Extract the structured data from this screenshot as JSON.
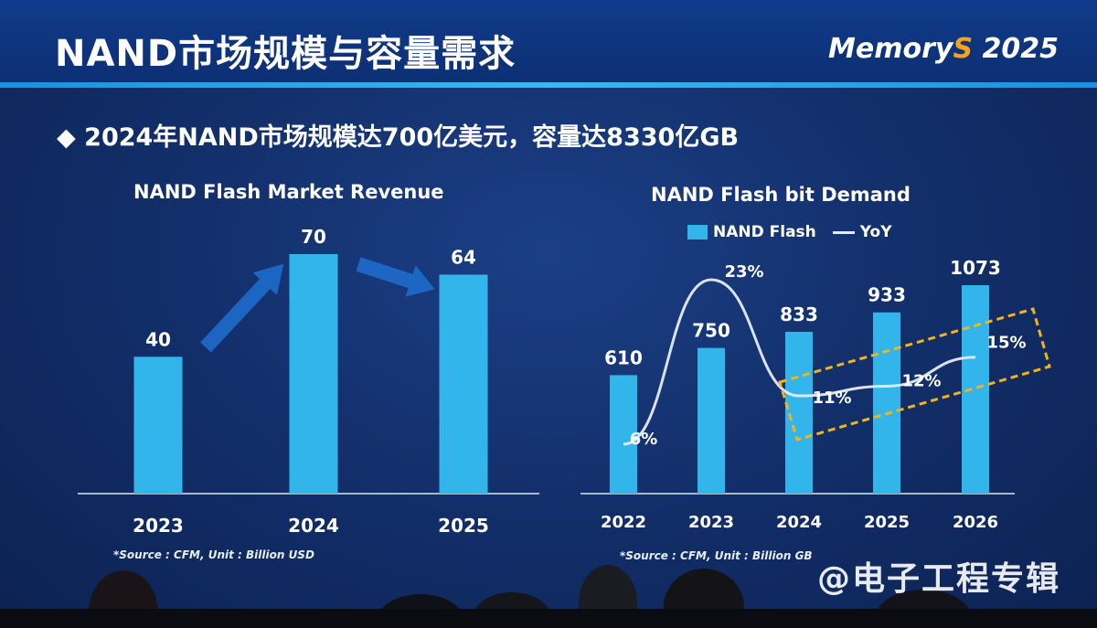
{
  "slide": {
    "title": "NAND市场规模与容量需求",
    "logo_main": "Memory",
    "logo_accent": "S",
    "logo_year": " 2025",
    "headline": "◆ 2024年NAND市场规模达700亿美元，容量达8330亿GB",
    "watermark": "@电子工程专辑"
  },
  "colors": {
    "bar": "#32b5ea",
    "line": "#e6ecf5",
    "highlight": "#f2b31b",
    "arrow": "#1e6fd0"
  },
  "chart_data": [
    {
      "type": "bar",
      "title": "NAND Flash Market Revenue",
      "categories": [
        "2023",
        "2024",
        "2025"
      ],
      "values": [
        40,
        70,
        64
      ],
      "ylim": [
        0,
        70
      ],
      "source": "*Source : CFM, Unit : Billion USD"
    },
    {
      "type": "bar",
      "title": "NAND Flash bit Demand",
      "categories": [
        "2022",
        "2023",
        "2024",
        "2025",
        "2026"
      ],
      "series": [
        {
          "name": "NAND Flash",
          "type": "bar",
          "values": [
            610,
            750,
            833,
            933,
            1073
          ]
        },
        {
          "name": "YoY",
          "type": "line",
          "values": [
            6,
            23,
            11,
            12,
            15
          ],
          "labels": [
            "6%",
            "23%",
            "11%",
            "12%",
            "15%"
          ]
        }
      ],
      "legend": "top",
      "source": "*Source : CFM, Unit : Billion GB"
    }
  ]
}
